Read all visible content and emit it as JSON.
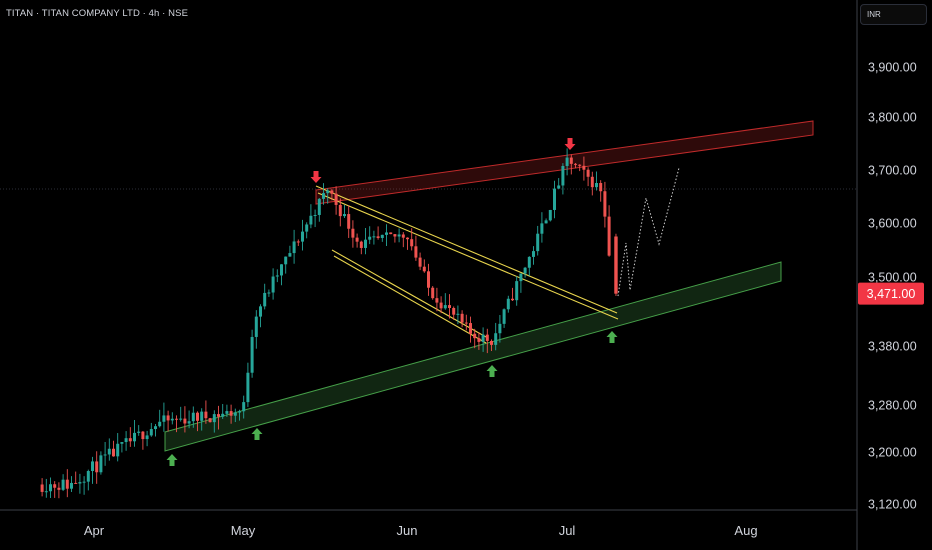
{
  "header": {
    "symbol_title": "TITAN · TITAN COMPANY LTD · 4h · NSE",
    "currency": "INR"
  },
  "colors": {
    "up": "#26a69a",
    "down": "#ef5350",
    "resistance_channel": "#d32f2f",
    "support_channel": "#4caf50",
    "wedge": "#e8d44d",
    "arrow_up": "#4caf50",
    "arrow_down": "#f23645",
    "price_badge": "#f23645",
    "text": "#d1d4dc",
    "grid": "#2a2e39"
  },
  "chart_data": {
    "type": "candlestick",
    "title": "TITAN · TITAN COMPANY LTD · 4h · NSE",
    "ylabel": "INR",
    "y_ticks": [
      3120,
      3200,
      3280,
      3380,
      3500,
      3600,
      3700,
      3800,
      3900
    ],
    "y_tick_labels": [
      "3,120.00",
      "3,200.00",
      "3,280.00",
      "3,380.00",
      "3,500.00",
      "3,600.00",
      "3,700.00",
      "3,800.00",
      "3,900.00"
    ],
    "x_labels": [
      "Apr",
      "May",
      "Jun",
      "Jul",
      "Aug"
    ],
    "ylim": [
      3110,
      4000
    ],
    "last_price": 3471,
    "last_price_label": "3,471.00",
    "grid": false,
    "key_points": [
      {
        "date": "Mar 28",
        "price": 3150
      },
      {
        "date": "Apr 15",
        "price": 3250
      },
      {
        "date": "May 02",
        "price": 3270
      },
      {
        "date": "May 04",
        "price": 3430
      },
      {
        "date": "May 18",
        "price": 3665
      },
      {
        "date": "May 24",
        "price": 3560
      },
      {
        "date": "Jun 02",
        "price": 3580
      },
      {
        "date": "Jun 06",
        "price": 3480
      },
      {
        "date": "Jun 14",
        "price": 3400
      },
      {
        "date": "Jun 18",
        "price": 3390
      },
      {
        "date": "Jun 26",
        "price": 3560
      },
      {
        "date": "Jul 02",
        "price": 3720
      },
      {
        "date": "Jul 08",
        "price": 3660
      },
      {
        "date": "Jul 10",
        "price": 3471
      }
    ],
    "annotations": {
      "resistance_channel": "rising red channel from the May high through the July high",
      "support_channel": "rising green channel connecting the April, May and June lows",
      "falling_wedge": "yellow falling channel from the May high to the mid-July support",
      "down_arrows": 2,
      "up_arrows": 4,
      "projection": "dotted zig-zag path rising toward the upper channel"
    }
  }
}
